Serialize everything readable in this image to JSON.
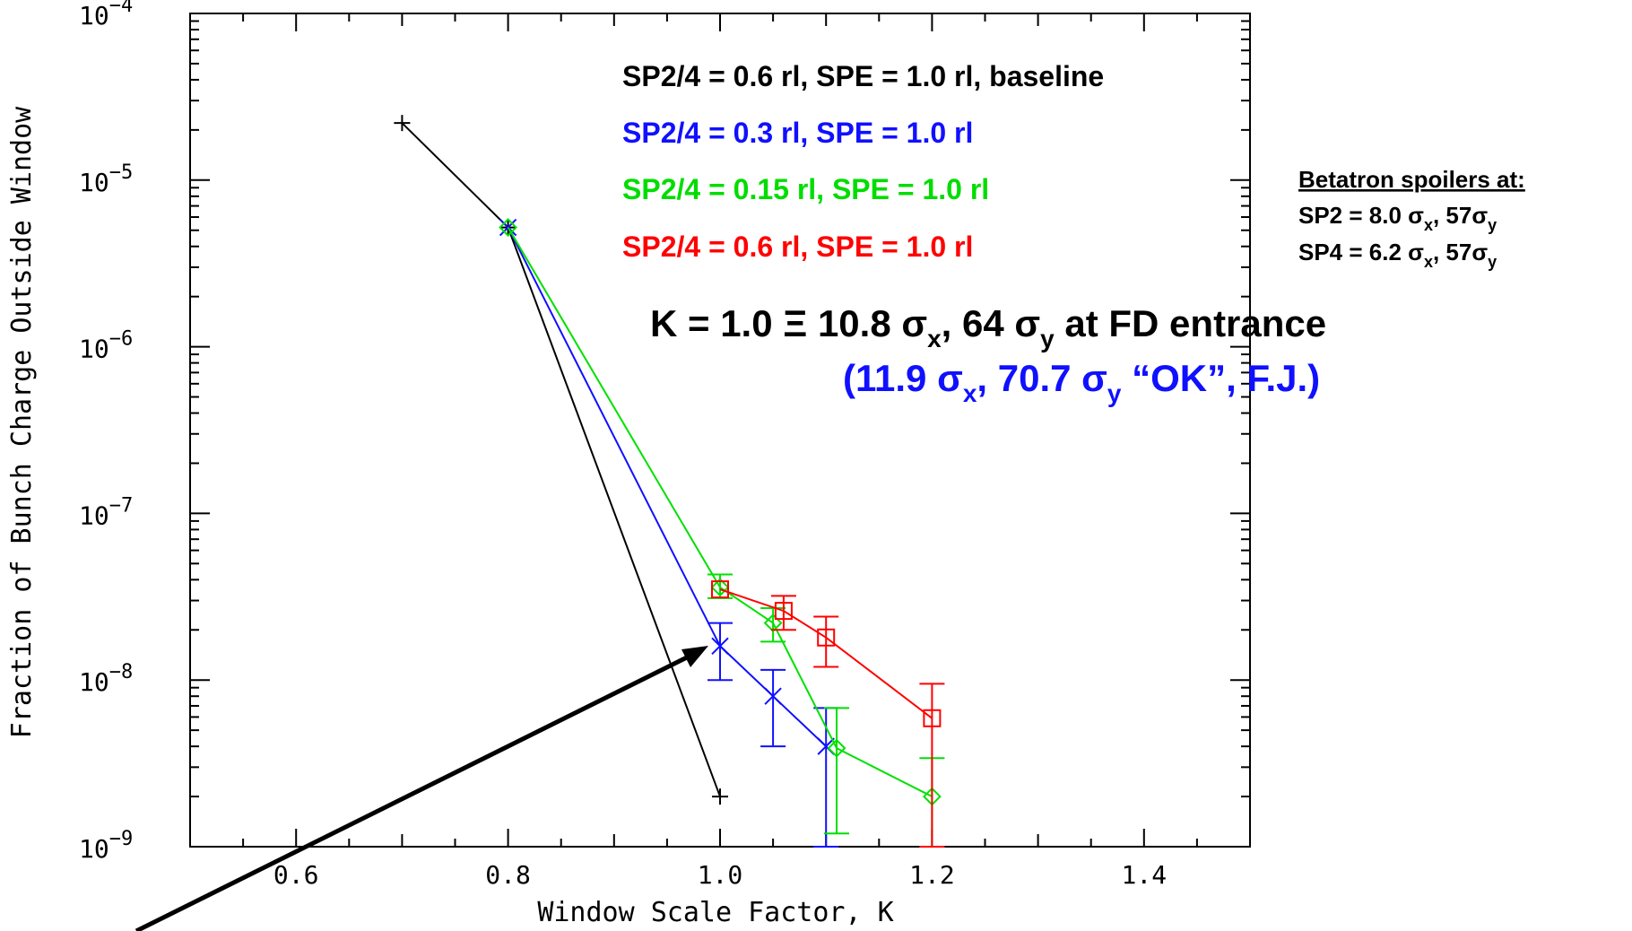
{
  "chart_data": {
    "type": "line",
    "title": "",
    "xlabel": "Window Scale Factor, K",
    "ylabel": "Fraction of Bunch Charge Outside Window",
    "xlim": [
      0.5,
      1.5
    ],
    "ylim_log10": [
      -9,
      -4
    ],
    "yscale": "log",
    "x_tick_labels": [
      "0.6",
      "0.8",
      "1.0",
      "1.2",
      "1.4"
    ],
    "x_tick_values": [
      0.6,
      0.8,
      1.0,
      1.2,
      1.4
    ],
    "y_tick_labels": [
      {
        "base": "10",
        "exp": "−4",
        "value": -4
      },
      {
        "base": "10",
        "exp": "−5",
        "value": -5
      },
      {
        "base": "10",
        "exp": "−6",
        "value": -6
      },
      {
        "base": "10",
        "exp": "−7",
        "value": -7
      },
      {
        "base": "10",
        "exp": "−8",
        "value": -8
      },
      {
        "base": "10",
        "exp": "−9",
        "value": -9
      }
    ],
    "grid": false,
    "series": [
      {
        "name": "SP2/4 = 0.6 rl, SPE = 1.0 rl, baseline",
        "color": "#000000",
        "marker": "plus",
        "points": [
          {
            "x": 0.7,
            "y": 2.2e-05
          },
          {
            "x": 0.8,
            "y": 5.2e-06
          },
          {
            "x": 1.0,
            "y": 2e-09
          }
        ]
      },
      {
        "name": "SP2/4 = 0.3 rl, SPE = 1.0 rl",
        "color": "#1010ff",
        "marker": "x",
        "points": [
          {
            "x": 0.8,
            "y": 5.2e-06
          },
          {
            "x": 1.0,
            "y": 1.6e-08,
            "err_lo": 1e-08,
            "err_hi": 2.2e-08
          },
          {
            "x": 1.05,
            "y": 8e-09,
            "err_lo": 4e-09,
            "err_hi": 1.15e-08
          },
          {
            "x": 1.1,
            "y": 4e-09,
            "err_lo": 1e-09,
            "err_hi": 6.8e-09
          }
        ]
      },
      {
        "name": "SP2/4 = 0.15 rl, SPE = 1.0 rl",
        "color": "#00e000",
        "marker": "diamond",
        "points": [
          {
            "x": 0.8,
            "y": 5.2e-06
          },
          {
            "x": 1.0,
            "y": 3.6e-08,
            "err_lo": 3.1e-08,
            "err_hi": 4.3e-08
          },
          {
            "x": 1.05,
            "y": 2.2e-08,
            "err_lo": 1.7e-08,
            "err_hi": 2.7e-08
          },
          {
            "x": 1.11,
            "y": 3.9e-09,
            "err_lo": 1.2e-09,
            "err_hi": 6.8e-09
          },
          {
            "x": 1.2,
            "y": 2e-09,
            "err_lo": 1e-09,
            "err_hi": 3.4e-09
          }
        ]
      },
      {
        "name": "SP2/4 = 0.6 rl, SPE = 1.0 rl",
        "color": "#ff0000",
        "marker": "square",
        "points": [
          {
            "x": 1.0,
            "y": 3.5e-08
          },
          {
            "x": 1.06,
            "y": 2.6e-08,
            "err_lo": 2e-08,
            "err_hi": 3.2e-08
          },
          {
            "x": 1.1,
            "y": 1.8e-08,
            "err_lo": 1.2e-08,
            "err_hi": 2.4e-08
          },
          {
            "x": 1.2,
            "y": 5.9e-09,
            "err_lo": 1e-09,
            "err_hi": 9.5e-09
          }
        ]
      }
    ]
  },
  "annotations": {
    "legend_lines": [
      {
        "text": "SP2/4 = 0.6 rl, SPE = 1.0 rl, baseline",
        "color": "#000000"
      },
      {
        "text": "SP2/4 = 0.3 rl, SPE = 1.0 rl",
        "color": "#1010ff"
      },
      {
        "text": "SP2/4 = 0.15 rl, SPE = 1.0 rl",
        "color": "#00dd00"
      },
      {
        "text": "SP2/4 = 0.6 rl, SPE = 1.0 rl",
        "color": "#ff0000"
      }
    ],
    "k_def": {
      "prefix": "K = 1.0  Ξ 10.8 σ",
      "sub1": "x",
      "mid": ", 64 σ",
      "sub2": "y",
      "suffix": " at FD entrance"
    },
    "k_ok": {
      "prefix": "(11.9 σ",
      "sub1": "x",
      "mid": ", 70.7 σ",
      "sub2": "y",
      "suffix": " “OK”, F.J.)",
      "color": "#1010ff"
    },
    "spoilers": {
      "title": "Betatron spoilers at:",
      "sp2": {
        "prefix": "SP2 = 8.0 σ",
        "sub1": "x",
        "mid": ", 57σ",
        "sub2": "y"
      },
      "sp4": {
        "prefix": "SP4 = 6.2 σ",
        "sub1": "x",
        "mid": ", 57σ",
        "sub2": "y"
      }
    }
  }
}
